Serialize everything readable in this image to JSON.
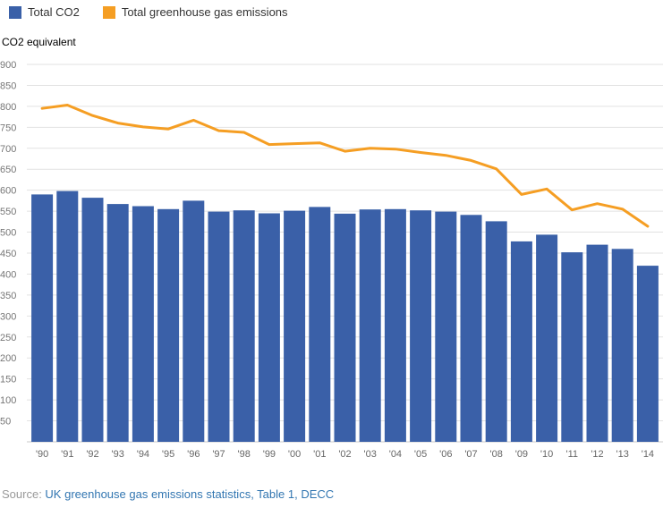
{
  "legend": {
    "items": [
      {
        "label": "Total CO2",
        "color": "#3a60a8"
      },
      {
        "label": "Total greenhouse gas emissions",
        "color": "#f59e23"
      }
    ]
  },
  "axis_title": "CO2 equivalent",
  "source": {
    "prefix": "Source: ",
    "link": "UK greenhouse gas emissions statistics, Table 1, DECC"
  },
  "colors": {
    "bar": "#3a60a8",
    "line": "#f59e23",
    "grid": "#e2e2e2",
    "baseline": "#c9c9c9",
    "y_label": "#767676",
    "x_label": "#666666"
  },
  "chart_data": {
    "type": "bar",
    "note": "bar series plus overlaid line series",
    "title": "",
    "ylabel": "CO2 equivalent",
    "xlabel": "",
    "ylim": [
      0,
      900
    ],
    "ytick_min": 50,
    "ytick_step": 50,
    "grid": true,
    "legend_position": "top-left",
    "categories": [
      "'90",
      "'91",
      "'92",
      "'93",
      "'94",
      "'95",
      "'96",
      "'97",
      "'98",
      "'99",
      "'00",
      "'01",
      "'02",
      "'03",
      "'04",
      "'05",
      "'06",
      "'07",
      "'08",
      "'09",
      "'10",
      "'11",
      "'12",
      "'13",
      "'14"
    ],
    "series": [
      {
        "name": "Total CO2",
        "type": "bar",
        "color": "#3a60a8",
        "values": [
          590,
          598,
          582,
          567,
          562,
          555,
          575,
          549,
          552,
          545,
          551,
          560,
          544,
          554,
          555,
          552,
          549,
          541,
          526,
          478,
          494,
          452,
          470,
          460,
          420
        ]
      },
      {
        "name": "Total greenhouse gas emissions",
        "type": "line",
        "color": "#f59e23",
        "values": [
          795,
          803,
          778,
          760,
          751,
          746,
          767,
          742,
          738,
          709,
          711,
          713,
          693,
          700,
          698,
          690,
          683,
          671,
          651,
          590,
          603,
          553,
          568,
          555,
          514
        ]
      }
    ]
  }
}
